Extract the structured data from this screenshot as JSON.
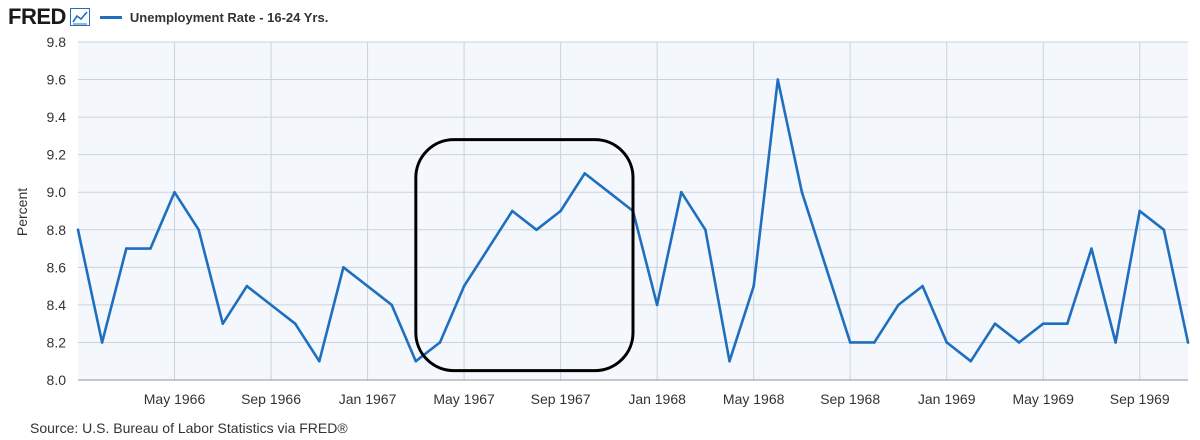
{
  "header": {
    "logo_text": "FRED",
    "logo_icon": "line-chart-icon",
    "legend_label": "Unemployment Rate - 16-24 Yrs."
  },
  "source": "Source: U.S. Bureau of Labor Statistics via FRED®",
  "colors": {
    "series": "#1f6fbf",
    "plot_background": "#f4f7fb",
    "grid": "#c9d3df",
    "annotation": "#000000"
  },
  "chart_data": {
    "type": "line",
    "title": "",
    "xlabel": "",
    "ylabel": "Percent",
    "ylim": [
      8.0,
      9.8
    ],
    "yticks": [
      "8.0",
      "8.2",
      "8.4",
      "8.6",
      "8.8",
      "9.0",
      "9.2",
      "9.4",
      "9.6",
      "9.8"
    ],
    "grid": true,
    "legend": "top-left",
    "xtick_labels": [
      "May 1966",
      "Sep 1966",
      "Jan 1967",
      "May 1967",
      "Sep 1967",
      "Jan 1968",
      "May 1968",
      "Sep 1968",
      "Jan 1969",
      "May 1969",
      "Sep 1969"
    ],
    "xtick_dates": [
      "1966-05",
      "1966-09",
      "1967-01",
      "1967-05",
      "1967-09",
      "1968-01",
      "1968-05",
      "1968-09",
      "1969-01",
      "1969-05",
      "1969-09"
    ],
    "annotation": {
      "type": "rounded-rectangle",
      "from": "1967-03",
      "to": "1967-12",
      "y_from": 8.05,
      "y_to": 9.28
    },
    "series": [
      {
        "name": "Unemployment Rate - 16-24 Yrs.",
        "x": [
          "1966-01",
          "1966-02",
          "1966-03",
          "1966-04",
          "1966-05",
          "1966-06",
          "1966-07",
          "1966-08",
          "1966-09",
          "1966-10",
          "1966-11",
          "1966-12",
          "1967-01",
          "1967-02",
          "1967-03",
          "1967-04",
          "1967-05",
          "1967-06",
          "1967-07",
          "1967-08",
          "1967-09",
          "1967-10",
          "1967-11",
          "1967-12",
          "1968-01",
          "1968-02",
          "1968-03",
          "1968-04",
          "1968-05",
          "1968-06",
          "1968-07",
          "1968-08",
          "1968-09",
          "1968-10",
          "1968-11",
          "1968-12",
          "1969-01",
          "1969-02",
          "1969-03",
          "1969-04",
          "1969-05",
          "1969-06",
          "1969-07",
          "1969-08",
          "1969-09",
          "1969-10",
          "1969-11"
        ],
        "values": [
          8.8,
          8.2,
          8.7,
          8.7,
          9.0,
          8.8,
          8.3,
          8.5,
          8.4,
          8.3,
          8.1,
          8.6,
          8.5,
          8.4,
          8.1,
          8.2,
          8.5,
          8.7,
          8.9,
          8.8,
          8.9,
          9.1,
          9.0,
          8.9,
          8.4,
          9.0,
          8.8,
          8.1,
          8.5,
          9.6,
          9.0,
          8.6,
          8.2,
          8.2,
          8.4,
          8.5,
          8.2,
          8.1,
          8.3,
          8.2,
          8.3,
          8.3,
          8.7,
          8.2,
          8.9,
          8.8,
          8.2
        ]
      }
    ]
  }
}
